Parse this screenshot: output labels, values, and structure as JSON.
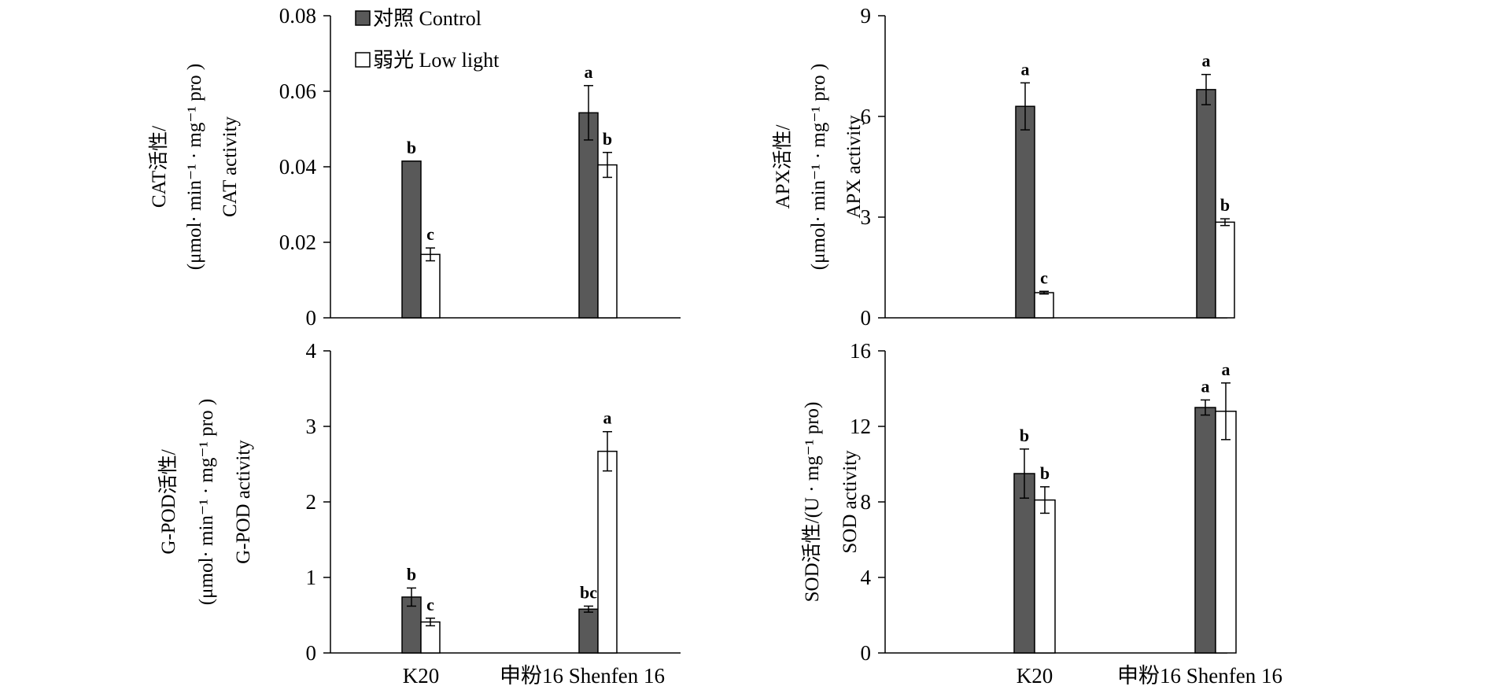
{
  "colors": {
    "control": "#595959",
    "low_light": "#ffffff",
    "stroke": "#000000"
  },
  "legend": [
    {
      "series": "control",
      "label": "对照 Control"
    },
    {
      "series": "low_light",
      "label": "弱光 Low light"
    }
  ],
  "chart_data": [
    {
      "id": "cat",
      "type": "bar",
      "categories": [
        "K20",
        "申粉16  Shenfen 16"
      ],
      "ylabel_lines": [
        "CAT活性/",
        "(μmol· min⁻¹ · mg⁻¹ pro )",
        "CAT activity"
      ],
      "ylim": [
        0,
        0.08
      ],
      "yticks": [
        "0",
        "0.02",
        "0.04",
        "0.06",
        "0.08"
      ],
      "show_xlabels": false,
      "series": [
        {
          "key": "control",
          "name": "对照 Control",
          "values": [
            0.0415,
            0.0543
          ],
          "errors": [
            0.0,
            0.0072
          ],
          "labels": [
            "b",
            "a"
          ]
        },
        {
          "key": "low_light",
          "name": "弱光 Low light",
          "values": [
            0.0168,
            0.0405
          ],
          "errors": [
            0.0017,
            0.0033
          ],
          "labels": [
            "c",
            "b"
          ]
        }
      ]
    },
    {
      "id": "apx",
      "type": "bar",
      "categories": [
        "K20",
        "申粉16  Shenfen 16"
      ],
      "ylabel_lines": [
        "APX活性/",
        "(μmol· min⁻¹ · mg⁻¹ pro )",
        "APX activity"
      ],
      "ylim": [
        0,
        9
      ],
      "yticks": [
        "0",
        "3",
        "6",
        "9"
      ],
      "show_xlabels": false,
      "series": [
        {
          "key": "control",
          "name": "对照 Control",
          "values": [
            6.3,
            6.8
          ],
          "errors": [
            0.7,
            0.45
          ],
          "labels": [
            "a",
            "a"
          ]
        },
        {
          "key": "low_light",
          "name": "弱光 Low light",
          "values": [
            0.75,
            2.85
          ],
          "errors": [
            0.04,
            0.1
          ],
          "labels": [
            "c",
            "b"
          ]
        }
      ]
    },
    {
      "id": "gpod",
      "type": "bar",
      "categories": [
        "K20",
        "申粉16  Shenfen 16"
      ],
      "ylabel_lines": [
        "G-POD活性/",
        "(μmol· min⁻¹ · mg⁻¹ pro )",
        "G-POD activity"
      ],
      "ylim": [
        0,
        4
      ],
      "yticks": [
        "0",
        "1",
        "2",
        "3",
        "4"
      ],
      "show_xlabels": true,
      "series": [
        {
          "key": "control",
          "name": "对照 Control",
          "values": [
            0.74,
            0.58
          ],
          "errors": [
            0.12,
            0.04
          ],
          "labels": [
            "b",
            "bc"
          ]
        },
        {
          "key": "low_light",
          "name": "弱光 Low light",
          "values": [
            0.41,
            2.67
          ],
          "errors": [
            0.05,
            0.26
          ],
          "labels": [
            "c",
            "a"
          ]
        }
      ]
    },
    {
      "id": "sod",
      "type": "bar",
      "categories": [
        "K20",
        "申粉16  Shenfen 16"
      ],
      "ylabel_lines": [
        "SOD活性/(U · mg⁻¹ pro)",
        "SOD activity"
      ],
      "ylim": [
        0,
        16
      ],
      "yticks": [
        "0",
        "4",
        "8",
        "12",
        "16"
      ],
      "show_xlabels": true,
      "series": [
        {
          "key": "control",
          "name": "对照 Control",
          "values": [
            9.5,
            13.0
          ],
          "errors": [
            1.3,
            0.4
          ],
          "labels": [
            "b",
            "a"
          ]
        },
        {
          "key": "low_light",
          "name": "弱光 Low light",
          "values": [
            8.1,
            12.8
          ],
          "errors": [
            0.7,
            1.5
          ],
          "labels": [
            "b",
            "a"
          ]
        }
      ]
    }
  ]
}
